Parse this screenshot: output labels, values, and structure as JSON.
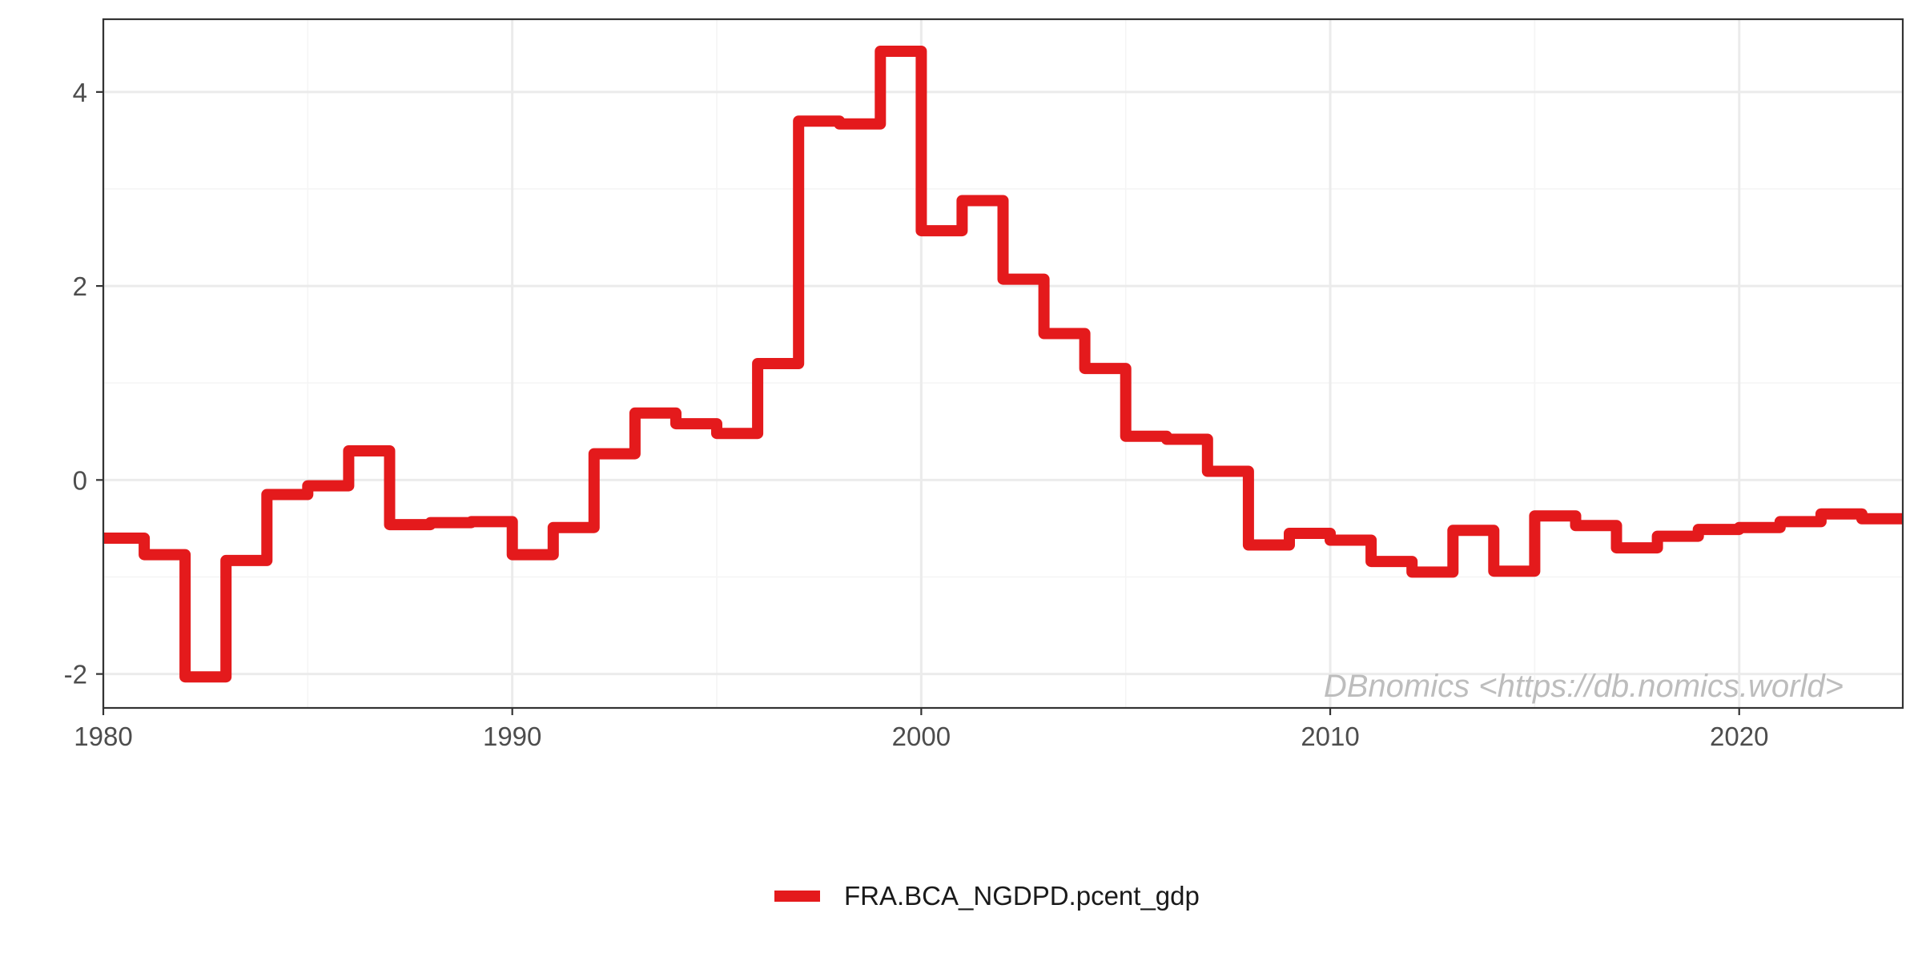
{
  "chart_data": {
    "type": "line",
    "step": true,
    "x": [
      1980,
      1981,
      1982,
      1983,
      1984,
      1985,
      1986,
      1987,
      1988,
      1989,
      1990,
      1991,
      1992,
      1993,
      1994,
      1995,
      1996,
      1997,
      1998,
      1999,
      2000,
      2001,
      2002,
      2003,
      2004,
      2005,
      2006,
      2007,
      2008,
      2009,
      2010,
      2011,
      2012,
      2013,
      2014,
      2015,
      2016,
      2017,
      2018,
      2019,
      2020,
      2021,
      2022,
      2023
    ],
    "series": [
      {
        "name": "FRA.BCA_NGDPD.pcent_gdp",
        "color": "#e41a1c",
        "values": [
          -0.6,
          -0.77,
          -2.03,
          -0.83,
          -0.15,
          -0.06,
          0.3,
          -0.46,
          -0.44,
          -0.43,
          -0.77,
          -0.49,
          0.27,
          0.69,
          0.58,
          0.48,
          1.2,
          3.7,
          3.67,
          4.42,
          2.57,
          2.88,
          2.07,
          1.51,
          1.15,
          0.45,
          0.42,
          0.09,
          -0.67,
          -0.55,
          -0.62,
          -0.84,
          -0.95,
          -0.52,
          -0.94,
          -0.37,
          -0.47,
          -0.7,
          -0.58,
          -0.51,
          -0.49,
          -0.43,
          -0.35,
          -0.4
        ]
      }
    ],
    "xlim": [
      1980,
      2024
    ],
    "ylim": [
      -2.35,
      4.75
    ],
    "x_ticks": [
      1980,
      1990,
      2000,
      2010,
      2020
    ],
    "x_tick_labels": [
      "1980",
      "1990",
      "2000",
      "2010",
      "2020"
    ],
    "y_ticks": [
      -2,
      0,
      2,
      4
    ],
    "y_tick_labels": [
      "-2",
      "0",
      "2",
      "4"
    ],
    "grid": true,
    "legend_position": "bottom",
    "annotation": "DBnomics <https://db.nomics.world>",
    "colors": {
      "line": "#e41a1c",
      "grid_major": "#ebebeb",
      "grid_minor": "#f5f5f5",
      "panel_border": "#333333",
      "tick_text": "#4d4d4d",
      "watermark": "#bdbdbd"
    }
  }
}
